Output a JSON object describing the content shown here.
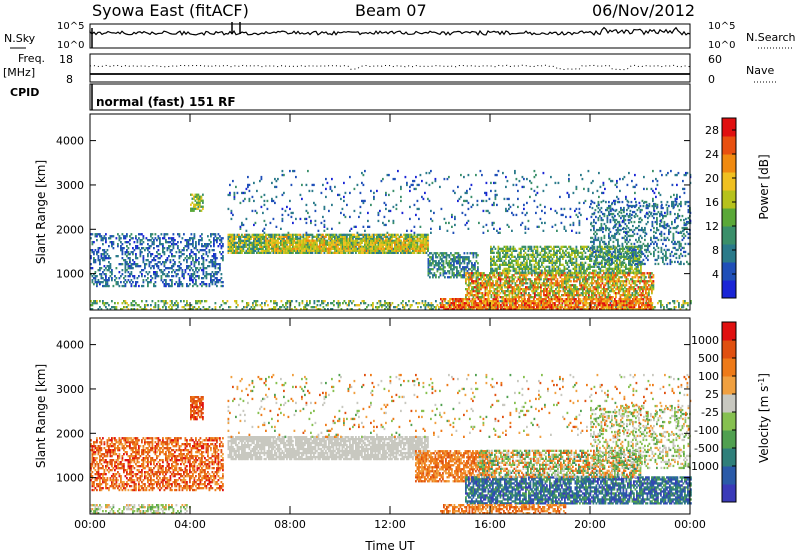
{
  "header": {
    "station": "Syowa East (fitACF)",
    "beam": "Beam 07",
    "date": "06/Nov/2012"
  },
  "status_panel": {
    "nsky_label": "N.Sky",
    "nsearch_label": "N.Search",
    "freq_label": "Freq.",
    "freq_unit": "[MHz]",
    "nave_label": "Nave",
    "cpid_label": "CPID",
    "cpid_text": "normal (fast) 151 RF",
    "noise_ticks_left": [
      "10^5",
      "10^0"
    ],
    "noise_ticks_right": [
      "10^5",
      "10^0"
    ],
    "freq_ticks_left": [
      "18",
      "8"
    ],
    "nave_ticks_right": [
      "60",
      "0"
    ]
  },
  "colors": {
    "power_scale": [
      "#1a25d6",
      "#1f4fb8",
      "#2a7a8a",
      "#3a8f6a",
      "#5aa838",
      "#b6c21c",
      "#f0c020",
      "#f08a10",
      "#e85010",
      "#e01010"
    ],
    "velocity_scale": [
      "#3a3ab8",
      "#2a5aa8",
      "#2f7f7a",
      "#50a050",
      "#86c050",
      "#c8c8c0",
      "#f0a040",
      "#ee7a18",
      "#e05010",
      "#e01010"
    ],
    "ground_scatter": "#c0c0c0"
  },
  "chart_data": [
    {
      "type": "heatmap",
      "panel": "power",
      "xlabel": "",
      "ylabel": "Slant Range [km]",
      "x_ticks": [
        "00:00",
        "04:00",
        "08:00",
        "12:00",
        "16:00",
        "20:00",
        "00:00"
      ],
      "y_ticks": [
        "1000",
        "2000",
        "3000",
        "4000"
      ],
      "ylim": [
        180,
        4600
      ],
      "xlim_hours": [
        0,
        24
      ],
      "colorbar_label": "Power [dB]",
      "colorbar_ticks": [
        "4",
        "8",
        "12",
        "16",
        "20",
        "24",
        "28"
      ],
      "colorbar_range": [
        0,
        30
      ],
      "regions": [
        {
          "t0": 0.0,
          "t1": 5.3,
          "r0": 700,
          "r1": 1900,
          "density": 0.35,
          "v0": 2,
          "v1": 10
        },
        {
          "t0": 0.0,
          "t1": 24.0,
          "r0": 180,
          "r1": 380,
          "density": 0.35,
          "v0": 6,
          "v1": 20
        },
        {
          "t0": 4.0,
          "t1": 4.5,
          "r0": 2400,
          "r1": 2800,
          "density": 0.6,
          "v0": 10,
          "v1": 20
        },
        {
          "t0": 5.5,
          "t1": 13.5,
          "r0": 1450,
          "r1": 1900,
          "density": 0.85,
          "v0": 6,
          "v1": 22
        },
        {
          "t0": 7.0,
          "t1": 13.5,
          "r0": 1500,
          "r1": 1750,
          "density": 0.7,
          "v0": 14,
          "v1": 22
        },
        {
          "t0": 13.5,
          "t1": 15.5,
          "r0": 900,
          "r1": 1450,
          "density": 0.6,
          "v0": 4,
          "v1": 14
        },
        {
          "t0": 14.0,
          "t1": 22.5,
          "r0": 180,
          "r1": 450,
          "density": 0.8,
          "v0": 18,
          "v1": 30
        },
        {
          "t0": 15.0,
          "t1": 22.5,
          "r0": 450,
          "r1": 1000,
          "density": 0.7,
          "v0": 10,
          "v1": 28
        },
        {
          "t0": 16.0,
          "t1": 22.0,
          "r0": 1000,
          "r1": 1600,
          "density": 0.6,
          "v0": 8,
          "v1": 18
        },
        {
          "t0": 20.0,
          "t1": 24.0,
          "r0": 1200,
          "r1": 2600,
          "density": 0.3,
          "v0": 4,
          "v1": 12
        },
        {
          "t0": 5.5,
          "t1": 24.0,
          "r0": 1900,
          "r1": 3300,
          "density": 0.06,
          "v0": 2,
          "v1": 10
        }
      ]
    },
    {
      "type": "heatmap",
      "panel": "velocity",
      "xlabel": "Time UT",
      "ylabel": "Slant Range [km]",
      "x_ticks": [
        "00:00",
        "04:00",
        "08:00",
        "12:00",
        "16:00",
        "20:00",
        "00:00"
      ],
      "y_ticks": [
        "1000",
        "2000",
        "3000",
        "4000"
      ],
      "ylim": [
        180,
        4600
      ],
      "xlim_hours": [
        0,
        24
      ],
      "colorbar_label": "Velocity [m s",
      "colorbar_label_sup": "-1",
      "colorbar_label_end": "]",
      "colorbar_ticks": [
        "1000",
        "500",
        "100",
        "25",
        "-25",
        "-100",
        "-500",
        "-1000"
      ],
      "regions": [
        {
          "t0": 0.0,
          "t1": 5.3,
          "r0": 700,
          "r1": 1900,
          "density": 0.55,
          "v0": 6,
          "v1": 9
        },
        {
          "t0": 0.0,
          "t1": 4.0,
          "r0": 180,
          "r1": 380,
          "density": 0.4,
          "v0": 3,
          "v1": 6
        },
        {
          "t0": 4.0,
          "t1": 4.5,
          "r0": 2300,
          "r1": 2800,
          "density": 0.7,
          "v0": 7,
          "v1": 9
        },
        {
          "t0": 5.5,
          "t1": 13.5,
          "r0": 1400,
          "r1": 1900,
          "density": 0.8,
          "v0": 5,
          "v1": 5
        },
        {
          "t0": 13.0,
          "t1": 16.0,
          "r0": 900,
          "r1": 1600,
          "density": 0.7,
          "v0": 6,
          "v1": 8
        },
        {
          "t0": 15.0,
          "t1": 24.0,
          "r0": 400,
          "r1": 1000,
          "density": 0.75,
          "v0": 0,
          "v1": 3
        },
        {
          "t0": 15.5,
          "t1": 22.0,
          "r0": 1000,
          "r1": 1600,
          "density": 0.6,
          "v0": 2,
          "v1": 8
        },
        {
          "t0": 14.0,
          "t1": 19.0,
          "r0": 180,
          "r1": 400,
          "density": 0.6,
          "v0": 6,
          "v1": 8
        },
        {
          "t0": 20.0,
          "t1": 24.0,
          "r0": 1200,
          "r1": 2600,
          "density": 0.3,
          "v0": 3,
          "v1": 6
        },
        {
          "t0": 5.5,
          "t1": 24.0,
          "r0": 1900,
          "r1": 3300,
          "density": 0.06,
          "v0": 3,
          "v1": 8
        }
      ]
    }
  ]
}
